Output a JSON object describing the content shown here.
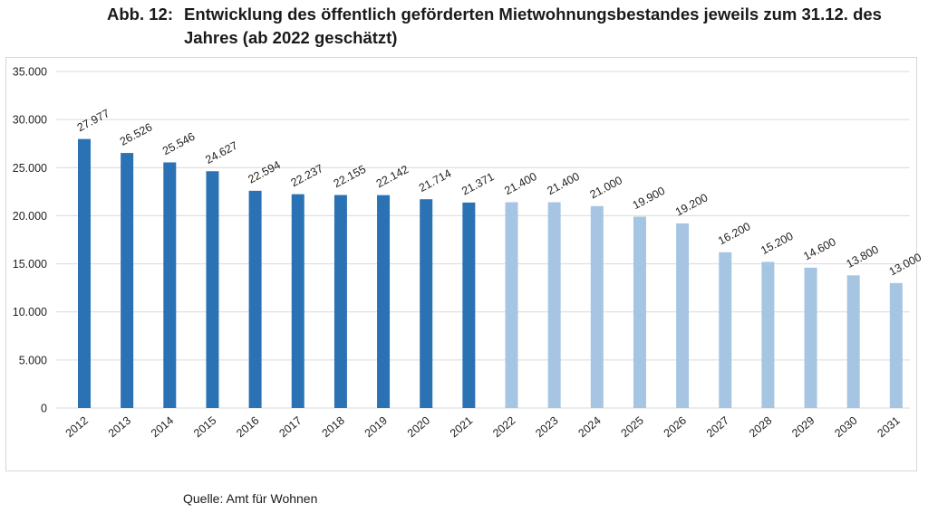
{
  "figure": {
    "number": "Abb. 12:",
    "title": "Entwicklung des öffentlich geförderten Mietwohnungsbestandes jeweils zum 31.12. des Jahres (ab 2022 geschätzt)"
  },
  "source": "Quelle: Amt für Wohnen",
  "colors": {
    "actual": "#2a72b4",
    "estimated": "#a5c5e3",
    "grid": "#d9d9d9"
  },
  "chart_data": {
    "type": "bar",
    "categories": [
      "2012",
      "2013",
      "2014",
      "2015",
      "2016",
      "2017",
      "2018",
      "2019",
      "2020",
      "2021",
      "2022",
      "2023",
      "2024",
      "2025",
      "2026",
      "2027",
      "2028",
      "2029",
      "2030",
      "2031"
    ],
    "values": [
      27977,
      26526,
      25546,
      24627,
      22594,
      22237,
      22155,
      22142,
      21714,
      21371,
      21400,
      21400,
      21000,
      19900,
      19200,
      16200,
      15200,
      14600,
      13800,
      13000
    ],
    "value_labels": [
      "27.977",
      "26.526",
      "25.546",
      "24.627",
      "22.594",
      "22.237",
      "22.155",
      "22.142",
      "21.714",
      "21.371",
      "21.400",
      "21.400",
      "21.000",
      "19.900",
      "19.200",
      "16.200",
      "15.200",
      "14.600",
      "13.800",
      "13.000"
    ],
    "estimated_from_index": 10,
    "ylim": [
      0,
      35000
    ],
    "yticks": [
      0,
      5000,
      10000,
      15000,
      20000,
      25000,
      30000,
      35000
    ],
    "ytick_labels": [
      "0",
      "5.000",
      "10.000",
      "15.000",
      "20.000",
      "25.000",
      "30.000",
      "35.000"
    ],
    "grid": true,
    "xlabel": "",
    "ylabel": ""
  }
}
